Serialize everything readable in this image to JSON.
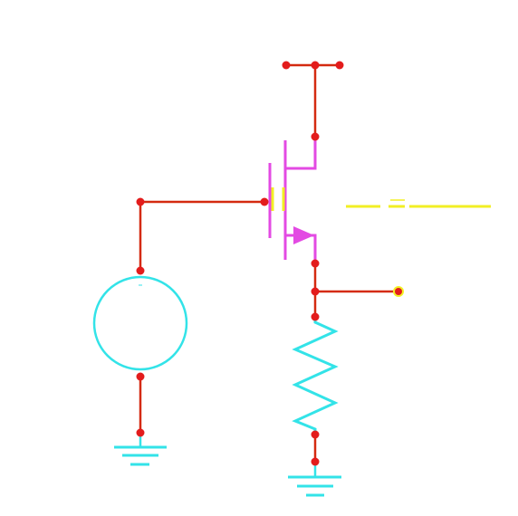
{
  "diagram": {
    "kind": "schematic",
    "components": [
      {
        "name": "vdd-rail",
        "icon": "supply-bar-icon"
      },
      {
        "name": "mosfet",
        "icon": "nmos-transistor-icon"
      },
      {
        "name": "voltage-source",
        "icon": "ac-source-icon"
      },
      {
        "name": "resistor",
        "icon": "resistor-zigzag-icon"
      },
      {
        "name": "ground-left",
        "icon": "ground-icon"
      },
      {
        "name": "ground-right",
        "icon": "ground-icon"
      },
      {
        "name": "output-terminal",
        "icon": "terminal-dot-icon"
      }
    ]
  },
  "colors": {
    "background": "#ffffff",
    "wire": "#d42a10",
    "node": "#e31c1c",
    "transistor": "#e34ae3",
    "component": "#33e3e8",
    "highlight": "#f2ef24"
  }
}
